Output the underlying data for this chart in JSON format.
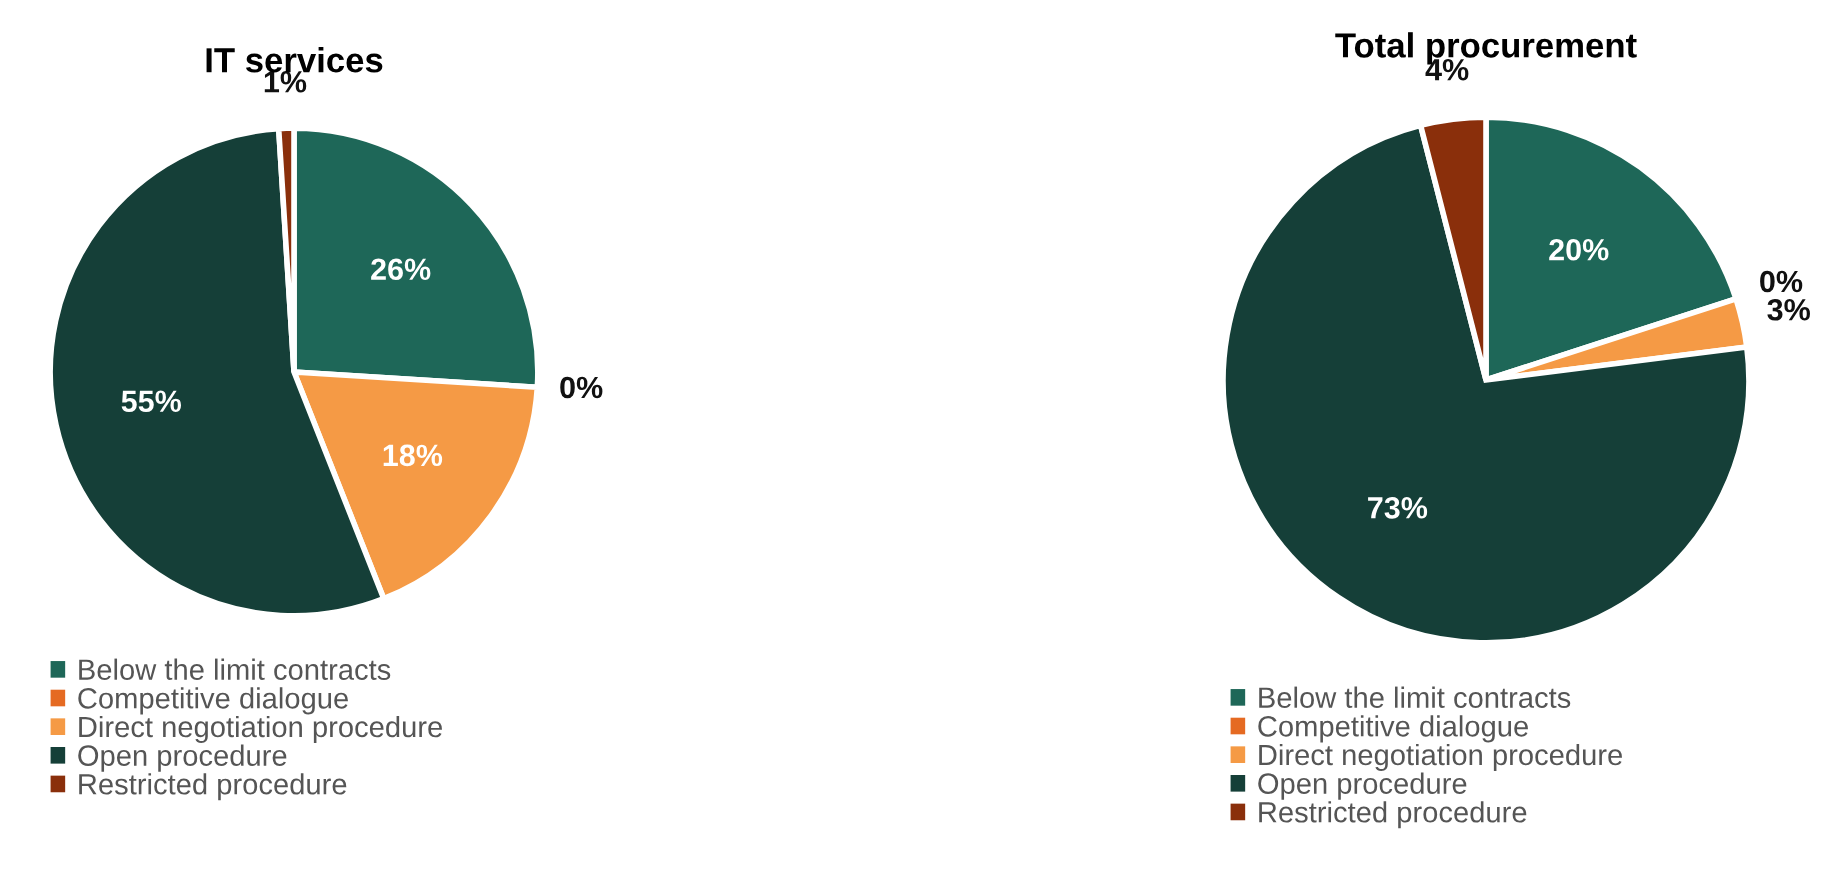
{
  "chart_data": [
    {
      "type": "pie",
      "title": "IT services",
      "categories": [
        "Below the limit contracts",
        "Competitive dialogue",
        "Direct negotiation procedure",
        "Open procedure",
        "Restricted procedure"
      ],
      "values": [
        26,
        0,
        18,
        55,
        1
      ],
      "value_labels": [
        "26%",
        "0%",
        "18%",
        "55%",
        "1%"
      ],
      "colors": [
        "#1e6758",
        "#e56a22",
        "#f59a45",
        "#153f38",
        "#8a2f0b"
      ],
      "legend": "bottom"
    },
    {
      "type": "pie",
      "title": "Total procurement",
      "categories": [
        "Below the limit contracts",
        "Competitive dialogue",
        "Direct negotiation procedure",
        "Open procedure",
        "Restricted procedure"
      ],
      "values": [
        20,
        0,
        3,
        73,
        4
      ],
      "value_labels": [
        "20%",
        "0%",
        "3%",
        "73%",
        "4%"
      ],
      "colors": [
        "#1e6758",
        "#e56a22",
        "#f59a45",
        "#153f38",
        "#8a2f0b"
      ],
      "legend": "bottom"
    }
  ]
}
